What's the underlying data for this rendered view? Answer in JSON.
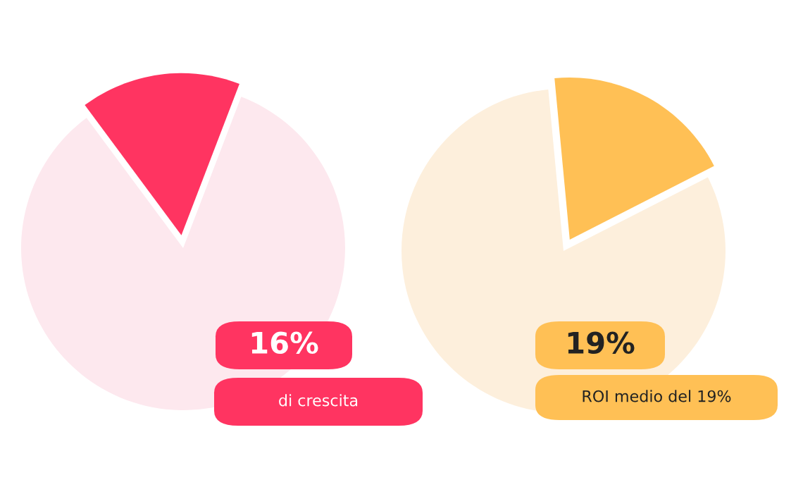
{
  "chart_data": [
    {
      "type": "pie",
      "categories": [
        null,
        null
      ],
      "values": [
        16,
        84
      ],
      "colors": [
        "#ff3461",
        "#fde8ee"
      ],
      "annotations": [
        "16%",
        "di crescita"
      ]
    },
    {
      "type": "pie",
      "categories": [
        null,
        null
      ],
      "values": [
        19,
        81
      ],
      "colors": [
        "#ffc055",
        "#fdefdc"
      ],
      "annotations": [
        "19%",
        "ROI medio del 19%"
      ]
    }
  ]
}
